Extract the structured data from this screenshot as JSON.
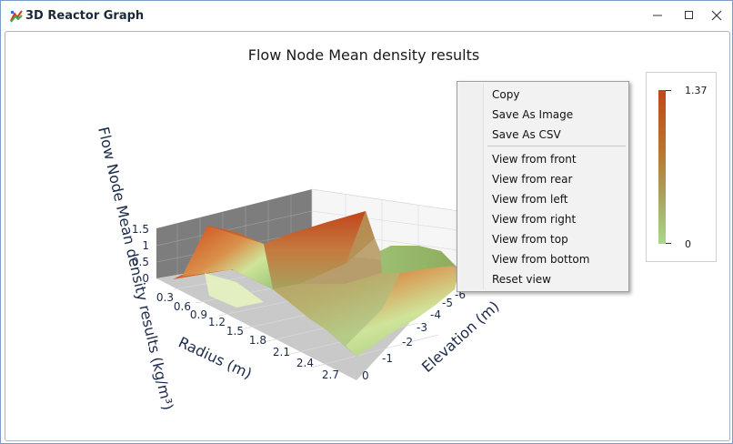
{
  "window": {
    "title": "3D Reactor Graph"
  },
  "chart_data": {
    "type": "surface",
    "title": "Flow Node Mean density results",
    "xlabel": "Radius (m)",
    "ylabel": "Elevation (m)",
    "zlabel": "Flow Node Mean density results (kg/m³)",
    "x_ticks": [
      "0.3",
      "0.6",
      "0.9",
      "1.2",
      "1.5",
      "1.8",
      "2.1",
      "2.4",
      "2.7"
    ],
    "y_ticks": [
      "0",
      "-1",
      "-2",
      "-3",
      "-4",
      "-5",
      "-6"
    ],
    "z_ticks": [
      "0",
      "0.5",
      "1",
      "1.5"
    ],
    "colorscale": {
      "max_label": "1.37",
      "min_label": "0",
      "max": 1.37,
      "min": 0,
      "high_color": "#c2471c",
      "low_color": "#a8d98a"
    }
  },
  "context_menu": {
    "items": [
      "Copy",
      "Save As Image",
      "Save As CSV",
      "View from front",
      "View from rear",
      "View from left",
      "View from right",
      "View from top",
      "View from bottom",
      "Reset view"
    ]
  }
}
